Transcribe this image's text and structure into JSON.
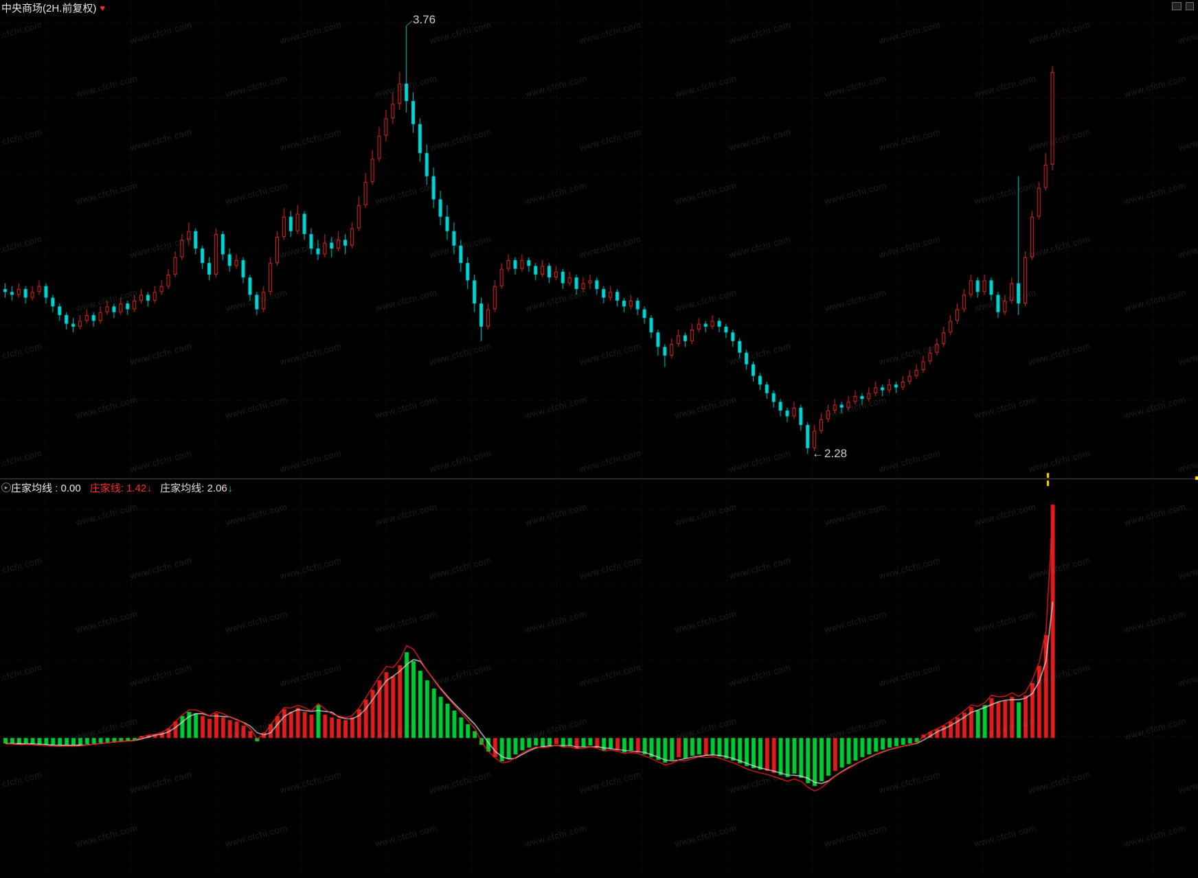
{
  "header": {
    "title": "中央商场(2H.前复权)",
    "heart_icon": "♥"
  },
  "watermark": {
    "text": "www.cfchi.com"
  },
  "panel_divider": {
    "marker_color": "#ffe000"
  },
  "chart_data": [
    {
      "type": "candlestick",
      "title": "中央商场(2H.前复权)",
      "timeframe": "2H",
      "adjustment": "前复权",
      "high_label": "3.76",
      "low_label": "2.28",
      "low_label_arrow": "←",
      "ylim": [
        2.2,
        3.83
      ],
      "up_color": "#ee3028",
      "down_color": "#00d8d8",
      "grid": true,
      "candles": [
        [
          2.85,
          2.87,
          2.82,
          2.84
        ],
        [
          2.84,
          2.86,
          2.81,
          2.83
        ],
        [
          2.83,
          2.87,
          2.82,
          2.85
        ],
        [
          2.85,
          2.86,
          2.8,
          2.82
        ],
        [
          2.82,
          2.86,
          2.81,
          2.84
        ],
        [
          2.84,
          2.88,
          2.83,
          2.86
        ],
        [
          2.86,
          2.87,
          2.8,
          2.82
        ],
        [
          2.82,
          2.83,
          2.77,
          2.79
        ],
        [
          2.79,
          2.8,
          2.74,
          2.76
        ],
        [
          2.76,
          2.77,
          2.71,
          2.73
        ],
        [
          2.73,
          2.75,
          2.7,
          2.72
        ],
        [
          2.72,
          2.76,
          2.71,
          2.74
        ],
        [
          2.74,
          2.78,
          2.73,
          2.76
        ],
        [
          2.76,
          2.77,
          2.72,
          2.74
        ],
        [
          2.74,
          2.79,
          2.73,
          2.77
        ],
        [
          2.77,
          2.81,
          2.76,
          2.79
        ],
        [
          2.79,
          2.8,
          2.75,
          2.77
        ],
        [
          2.77,
          2.82,
          2.76,
          2.8
        ],
        [
          2.8,
          2.81,
          2.76,
          2.78
        ],
        [
          2.78,
          2.83,
          2.77,
          2.81
        ],
        [
          2.81,
          2.85,
          2.8,
          2.83
        ],
        [
          2.83,
          2.84,
          2.79,
          2.81
        ],
        [
          2.81,
          2.86,
          2.8,
          2.84
        ],
        [
          2.84,
          2.88,
          2.83,
          2.86
        ],
        [
          2.86,
          2.92,
          2.85,
          2.9
        ],
        [
          2.9,
          2.98,
          2.89,
          2.96
        ],
        [
          2.96,
          3.04,
          2.95,
          3.02
        ],
        [
          3.02,
          3.08,
          3.0,
          3.05
        ],
        [
          3.05,
          3.06,
          2.97,
          2.99
        ],
        [
          2.99,
          3.0,
          2.92,
          2.94
        ],
        [
          2.94,
          2.96,
          2.88,
          2.9
        ],
        [
          2.9,
          3.06,
          2.89,
          3.04
        ],
        [
          3.04,
          3.05,
          2.95,
          2.97
        ],
        [
          2.97,
          2.99,
          2.91,
          2.93
        ],
        [
          2.93,
          2.97,
          2.92,
          2.95
        ],
        [
          2.95,
          2.96,
          2.87,
          2.89
        ],
        [
          2.89,
          2.9,
          2.81,
          2.83
        ],
        [
          2.83,
          2.84,
          2.76,
          2.78
        ],
        [
          2.78,
          2.86,
          2.77,
          2.84
        ],
        [
          2.84,
          2.96,
          2.83,
          2.94
        ],
        [
          2.94,
          3.05,
          2.93,
          3.03
        ],
        [
          3.03,
          3.13,
          3.02,
          3.1
        ],
        [
          3.1,
          3.12,
          3.03,
          3.05
        ],
        [
          3.05,
          3.14,
          3.04,
          3.11
        ],
        [
          3.11,
          3.12,
          3.02,
          3.04
        ],
        [
          3.04,
          3.06,
          2.97,
          2.99
        ],
        [
          2.99,
          3.02,
          2.95,
          2.97
        ],
        [
          2.97,
          3.04,
          2.96,
          3.01
        ],
        [
          3.01,
          3.03,
          2.96,
          2.99
        ],
        [
          2.99,
          3.05,
          2.98,
          3.02
        ],
        [
          3.02,
          3.04,
          2.97,
          3.0
        ],
        [
          3.0,
          3.08,
          2.99,
          3.06
        ],
        [
          3.06,
          3.17,
          3.05,
          3.14
        ],
        [
          3.14,
          3.25,
          3.13,
          3.22
        ],
        [
          3.22,
          3.33,
          3.21,
          3.3
        ],
        [
          3.3,
          3.41,
          3.29,
          3.38
        ],
        [
          3.38,
          3.47,
          3.36,
          3.44
        ],
        [
          3.44,
          3.53,
          3.42,
          3.49
        ],
        [
          3.49,
          3.6,
          3.47,
          3.56
        ],
        [
          3.56,
          3.76,
          3.46,
          3.5
        ],
        [
          3.5,
          3.53,
          3.39,
          3.42
        ],
        [
          3.42,
          3.44,
          3.29,
          3.32
        ],
        [
          3.32,
          3.35,
          3.21,
          3.24
        ],
        [
          3.24,
          3.27,
          3.13,
          3.16
        ],
        [
          3.16,
          3.19,
          3.07,
          3.1
        ],
        [
          3.1,
          3.14,
          3.02,
          3.05
        ],
        [
          3.05,
          3.08,
          2.97,
          3.0
        ],
        [
          3.0,
          3.02,
          2.91,
          2.94
        ],
        [
          2.94,
          2.96,
          2.85,
          2.88
        ],
        [
          2.88,
          2.9,
          2.77,
          2.8
        ],
        [
          2.8,
          2.82,
          2.67,
          2.72
        ],
        [
          2.72,
          2.8,
          2.71,
          2.78
        ],
        [
          2.78,
          2.88,
          2.77,
          2.86
        ],
        [
          2.86,
          2.94,
          2.85,
          2.92
        ],
        [
          2.92,
          2.97,
          2.91,
          2.95
        ],
        [
          2.95,
          2.96,
          2.9,
          2.92
        ],
        [
          2.92,
          2.97,
          2.91,
          2.95
        ],
        [
          2.95,
          2.96,
          2.91,
          2.93
        ],
        [
          2.93,
          2.94,
          2.88,
          2.9
        ],
        [
          2.9,
          2.95,
          2.89,
          2.93
        ],
        [
          2.93,
          2.94,
          2.87,
          2.89
        ],
        [
          2.89,
          2.93,
          2.88,
          2.91
        ],
        [
          2.91,
          2.92,
          2.85,
          2.87
        ],
        [
          2.87,
          2.91,
          2.86,
          2.89
        ],
        [
          2.89,
          2.9,
          2.83,
          2.85
        ],
        [
          2.85,
          2.89,
          2.84,
          2.87
        ],
        [
          2.87,
          2.9,
          2.85,
          2.88
        ],
        [
          2.88,
          2.89,
          2.83,
          2.85
        ],
        [
          2.85,
          2.86,
          2.8,
          2.82
        ],
        [
          2.82,
          2.86,
          2.81,
          2.84
        ],
        [
          2.84,
          2.85,
          2.79,
          2.81
        ],
        [
          2.81,
          2.82,
          2.77,
          2.79
        ],
        [
          2.79,
          2.83,
          2.78,
          2.81
        ],
        [
          2.81,
          2.82,
          2.76,
          2.78
        ],
        [
          2.78,
          2.79,
          2.73,
          2.75
        ],
        [
          2.75,
          2.76,
          2.68,
          2.7
        ],
        [
          2.7,
          2.71,
          2.62,
          2.65
        ],
        [
          2.65,
          2.66,
          2.58,
          2.62
        ],
        [
          2.62,
          2.68,
          2.61,
          2.66
        ],
        [
          2.66,
          2.71,
          2.65,
          2.69
        ],
        [
          2.69,
          2.7,
          2.65,
          2.67
        ],
        [
          2.67,
          2.73,
          2.66,
          2.71
        ],
        [
          2.71,
          2.75,
          2.7,
          2.73
        ],
        [
          2.73,
          2.74,
          2.7,
          2.72
        ],
        [
          2.72,
          2.76,
          2.71,
          2.74
        ],
        [
          2.74,
          2.75,
          2.7,
          2.72
        ],
        [
          2.72,
          2.73,
          2.68,
          2.7
        ],
        [
          2.7,
          2.71,
          2.65,
          2.67
        ],
        [
          2.67,
          2.68,
          2.61,
          2.63
        ],
        [
          2.63,
          2.64,
          2.57,
          2.59
        ],
        [
          2.59,
          2.6,
          2.53,
          2.55
        ],
        [
          2.55,
          2.56,
          2.5,
          2.52
        ],
        [
          2.52,
          2.53,
          2.47,
          2.49
        ],
        [
          2.49,
          2.5,
          2.44,
          2.46
        ],
        [
          2.46,
          2.47,
          2.41,
          2.43
        ],
        [
          2.43,
          2.44,
          2.39,
          2.41
        ],
        [
          2.41,
          2.46,
          2.4,
          2.44
        ],
        [
          2.44,
          2.45,
          2.36,
          2.38
        ],
        [
          2.38,
          2.39,
          2.28,
          2.3
        ],
        [
          2.3,
          2.38,
          2.29,
          2.36
        ],
        [
          2.36,
          2.42,
          2.35,
          2.4
        ],
        [
          2.4,
          2.45,
          2.39,
          2.43
        ],
        [
          2.43,
          2.47,
          2.42,
          2.45
        ],
        [
          2.45,
          2.46,
          2.42,
          2.44
        ],
        [
          2.44,
          2.48,
          2.43,
          2.46
        ],
        [
          2.46,
          2.5,
          2.45,
          2.48
        ],
        [
          2.48,
          2.49,
          2.45,
          2.47
        ],
        [
          2.47,
          2.51,
          2.46,
          2.49
        ],
        [
          2.49,
          2.53,
          2.48,
          2.51
        ],
        [
          2.51,
          2.52,
          2.48,
          2.5
        ],
        [
          2.5,
          2.54,
          2.49,
          2.52
        ],
        [
          2.52,
          2.53,
          2.49,
          2.51
        ],
        [
          2.51,
          2.55,
          2.5,
          2.53
        ],
        [
          2.53,
          2.57,
          2.52,
          2.55
        ],
        [
          2.55,
          2.59,
          2.54,
          2.57
        ],
        [
          2.57,
          2.62,
          2.56,
          2.6
        ],
        [
          2.6,
          2.65,
          2.59,
          2.63
        ],
        [
          2.63,
          2.68,
          2.62,
          2.66
        ],
        [
          2.66,
          2.72,
          2.65,
          2.7
        ],
        [
          2.7,
          2.76,
          2.69,
          2.74
        ],
        [
          2.74,
          2.8,
          2.73,
          2.78
        ],
        [
          2.78,
          2.85,
          2.77,
          2.83
        ],
        [
          2.83,
          2.9,
          2.82,
          2.88
        ],
        [
          2.88,
          2.89,
          2.82,
          2.84
        ],
        [
          2.84,
          2.9,
          2.83,
          2.88
        ],
        [
          2.88,
          2.89,
          2.81,
          2.83
        ],
        [
          2.83,
          2.84,
          2.75,
          2.77
        ],
        [
          2.77,
          2.83,
          2.76,
          2.81
        ],
        [
          2.81,
          2.89,
          2.8,
          2.87
        ],
        [
          2.87,
          3.24,
          2.76,
          2.8
        ],
        [
          2.8,
          2.98,
          2.79,
          2.96
        ],
        [
          2.96,
          3.12,
          2.95,
          3.1
        ],
        [
          3.1,
          3.22,
          3.09,
          3.2
        ],
        [
          3.2,
          3.32,
          3.19,
          3.28
        ],
        [
          3.28,
          3.62,
          3.26,
          3.6
        ]
      ]
    },
    {
      "type": "bar",
      "name": "庄家指标",
      "legend": [
        {
          "text": "庄家均线 : 0.00",
          "arrow": "",
          "color": "#ececec",
          "arrow_color": ""
        },
        {
          "text": "庄家线: 1.42",
          "arrow": "↓",
          "color": "#ff2a2a",
          "arrow_color": "#ff2a2a"
        },
        {
          "text": "庄家均线: 2.06",
          "arrow": "↓",
          "color": "#e0e0e0",
          "arrow_color": "#00d8d8"
        }
      ],
      "baseline": 0,
      "unit": "relative-px",
      "bar_up_color": "#e01c1c",
      "bar_down_color": "#00cc33",
      "line_fast_name": "庄家线",
      "line_fast_color": "#ff1e1e",
      "line_slow_name": "庄家均线",
      "line_slow_color": "#eaeaea",
      "values": [
        -8,
        -8,
        -9,
        -8,
        -9,
        -10,
        -10,
        -11,
        -11,
        -10,
        -11,
        -10,
        -9,
        -8,
        -7,
        -6,
        -5,
        -4,
        -4,
        -3,
        3,
        4,
        5,
        8,
        14,
        24,
        32,
        38,
        36,
        32,
        28,
        36,
        30,
        26,
        24,
        18,
        10,
        -5,
        8,
        20,
        32,
        42,
        38,
        44,
        38,
        34,
        48,
        34,
        30,
        28,
        26,
        30,
        42,
        56,
        70,
        84,
        96,
        90,
        106,
        125,
        112,
        98,
        84,
        72,
        60,
        50,
        40,
        30,
        20,
        10,
        -10,
        -20,
        -28,
        -34,
        -30,
        -24,
        -18,
        -14,
        -11,
        -13,
        -11,
        -9,
        -13,
        -11,
        -15,
        -13,
        -11,
        -14,
        -18,
        -15,
        -18,
        -21,
        -18,
        -21,
        -24,
        -28,
        -32,
        -36,
        -32,
        -28,
        -30,
        -26,
        -24,
        -26,
        -24,
        -27,
        -30,
        -33,
        -37,
        -41,
        -44,
        -46,
        -48,
        -51,
        -54,
        -57,
        -52,
        -58,
        -66,
        -70,
        -63,
        -55,
        -48,
        -43,
        -38,
        -33,
        -28,
        -24,
        -20,
        -17,
        -14,
        -12,
        -10,
        -8,
        -6,
        5,
        9,
        13,
        18,
        24,
        30,
        37,
        45,
        40,
        48,
        58,
        52,
        55,
        60,
        52,
        62,
        80,
        105,
        150,
        340
      ],
      "colors": "ggggggggggggggggggggrrrrrrgggrrrrrrrrgrrrrrrrrgrrrrrrrrrrrrgggggggggggggrggggggggrggrggrggrggrgggggrgggrggggggggrrggggggggrggggggggggggrrrrrrrrggrrrrgrrrrr"
    }
  ]
}
